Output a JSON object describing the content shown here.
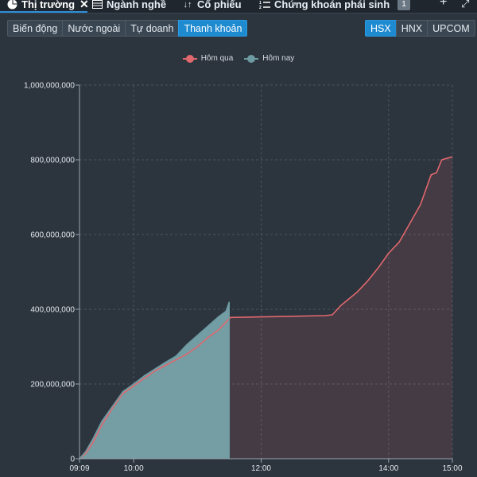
{
  "tabs": [
    {
      "label": "Thị trường",
      "icon": "pie-chart-icon",
      "active": true,
      "closable": true
    },
    {
      "label": "Ngành nghề",
      "icon": "table-icon",
      "active": false
    },
    {
      "label": "Cổ phiếu",
      "icon": "sort-icon",
      "active": false
    },
    {
      "label": "Chứng khoán phái sinh",
      "icon": "list-ordered-icon",
      "active": false
    }
  ],
  "tab_count_badge": "1",
  "toolbar_icons": [
    "add-icon",
    "expand-icon"
  ],
  "view_buttons": [
    {
      "label": "Biến động",
      "active": false
    },
    {
      "label": "Nước ngoài",
      "active": false
    },
    {
      "label": "Tự doanh",
      "active": false
    },
    {
      "label": "Thanh khoản",
      "active": true
    }
  ],
  "exchange_buttons": [
    {
      "label": "HSX",
      "active": true
    },
    {
      "label": "HNX",
      "active": false
    },
    {
      "label": "UPCOM",
      "active": false
    }
  ],
  "colors": {
    "accent": "#1e8ad0",
    "yesterday": "#e0686e",
    "today": "#6e9aa2"
  },
  "chart_data": {
    "type": "area",
    "legend_position": "top-center",
    "grid": true,
    "x_ticks": [
      "09:09",
      "10:00",
      "12:00",
      "14:00",
      "15:00"
    ],
    "y_ticks": [
      "0",
      "200,000,000",
      "400,000,000",
      "600,000,000",
      "800,000,000",
      "1,000,000,000"
    ],
    "ylim": [
      0,
      1000000000
    ],
    "xlim": [
      "09:09",
      "15:00"
    ],
    "series": [
      {
        "name": "Hôm qua",
        "color": "#e0686e",
        "points": [
          [
            "09:09",
            0
          ],
          [
            "09:15",
            15000000
          ],
          [
            "09:22",
            45000000
          ],
          [
            "09:30",
            90000000
          ],
          [
            "09:40",
            135000000
          ],
          [
            "09:50",
            175000000
          ],
          [
            "10:00",
            195000000
          ],
          [
            "10:10",
            215000000
          ],
          [
            "10:20",
            235000000
          ],
          [
            "10:30",
            250000000
          ],
          [
            "10:40",
            265000000
          ],
          [
            "10:50",
            280000000
          ],
          [
            "11:00",
            300000000
          ],
          [
            "11:10",
            325000000
          ],
          [
            "11:20",
            345000000
          ],
          [
            "11:30",
            375000000
          ],
          [
            "11:31",
            378000000
          ],
          [
            "13:00",
            383000000
          ],
          [
            "13:07",
            385000000
          ],
          [
            "13:15",
            410000000
          ],
          [
            "13:30",
            445000000
          ],
          [
            "13:40",
            475000000
          ],
          [
            "13:50",
            510000000
          ],
          [
            "14:00",
            550000000
          ],
          [
            "14:10",
            580000000
          ],
          [
            "14:20",
            630000000
          ],
          [
            "14:30",
            680000000
          ],
          [
            "14:40",
            760000000
          ],
          [
            "14:45",
            765000000
          ],
          [
            "14:50",
            800000000
          ],
          [
            "15:00",
            808000000
          ]
        ]
      },
      {
        "name": "Hôm nay",
        "color": "#6e9aa2",
        "points": [
          [
            "09:09",
            0
          ],
          [
            "09:15",
            20000000
          ],
          [
            "09:22",
            55000000
          ],
          [
            "09:30",
            100000000
          ],
          [
            "09:40",
            140000000
          ],
          [
            "09:50",
            180000000
          ],
          [
            "10:00",
            200000000
          ],
          [
            "10:10",
            222000000
          ],
          [
            "10:20",
            240000000
          ],
          [
            "10:30",
            258000000
          ],
          [
            "10:40",
            275000000
          ],
          [
            "10:50",
            305000000
          ],
          [
            "11:00",
            330000000
          ],
          [
            "11:10",
            355000000
          ],
          [
            "11:20",
            380000000
          ],
          [
            "11:27",
            395000000
          ],
          [
            "11:30",
            420000000
          ]
        ]
      }
    ]
  }
}
